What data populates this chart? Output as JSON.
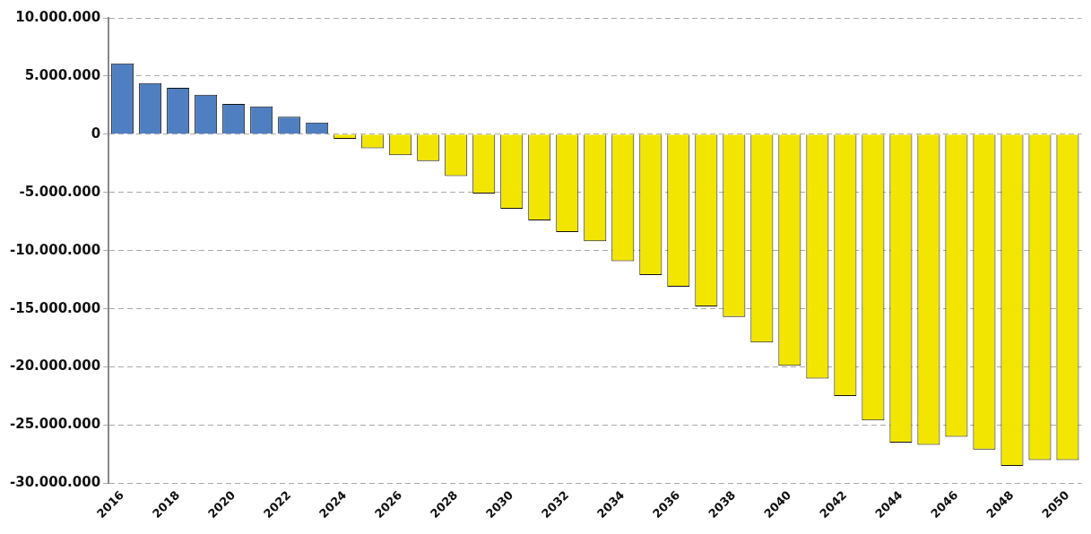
{
  "chart_data": {
    "type": "bar",
    "categories": [
      "2016",
      null,
      "2018",
      null,
      "2020",
      null,
      "2022",
      null,
      "2024",
      null,
      "2026",
      null,
      "2028",
      null,
      "2030",
      null,
      "2032",
      null,
      "2034",
      null,
      "2036",
      null,
      "2038",
      null,
      "2040",
      null,
      "2042",
      null,
      "2044",
      null,
      "2046",
      null,
      "2048",
      null,
      "2050"
    ],
    "values": [
      6100000.0,
      4400000.0,
      4000000.0,
      3400000.0,
      2600000.0,
      2400000.0,
      1500000.0,
      1000000.0,
      -400000.0,
      -1200000.0,
      -1800000.0,
      -2300000.0,
      -3600000.0,
      -5100000.0,
      -6400000.0,
      -7400000.0,
      -8400000.0,
      -9200000.0,
      -10900000.0,
      -12100000.0,
      -13100000.0,
      -14800000.0,
      -15700000.0,
      -17900000.0,
      -19900000.0,
      -21000000.0,
      -22500000.0,
      -24600000.0,
      -26500000.0,
      -26700000.0,
      -26000000.0,
      -27100000.0,
      -28500000.0,
      -28000000.0,
      -28000000.0
    ],
    "colors": [
      "#4f7fc0",
      "#4f7fc0",
      "#4f7fc0",
      "#4f7fc0",
      "#4f7fc0",
      "#4f7fc0",
      "#4f7fc0",
      "#4f7fc0",
      "#f2e600",
      "#f2e600",
      "#f2e600",
      "#f2e600",
      "#f2e600",
      "#f2e600",
      "#f2e600",
      "#f2e600",
      "#f2e600",
      "#f2e600",
      "#f2e600",
      "#f2e600",
      "#f2e600",
      "#f2e600",
      "#f2e600",
      "#f2e600",
      "#f2e600",
      "#f2e600",
      "#f2e600",
      "#f2e600",
      "#f2e600",
      "#f2e600",
      "#f2e600",
      "#f2e600",
      "#f2e600",
      "#f2e600",
      "#f2e600"
    ],
    "ylim": [
      -30000000,
      10000000
    ],
    "yticks": [
      {
        "value": 10000000,
        "label": "10.000.000"
      },
      {
        "value": 5000000,
        "label": "5.000.000"
      },
      {
        "value": 0,
        "label": "0"
      },
      {
        "value": -5000000,
        "label": "-5.000.000"
      },
      {
        "value": -10000000,
        "label": "-10.000.000"
      },
      {
        "value": -15000000,
        "label": "-15.000.000"
      },
      {
        "value": -20000000,
        "label": "-20.000.000"
      },
      {
        "value": -25000000,
        "label": "-25.000.000"
      },
      {
        "value": -30000000,
        "label": "-30.000.000"
      }
    ],
    "grid": "y",
    "legend": false
  }
}
